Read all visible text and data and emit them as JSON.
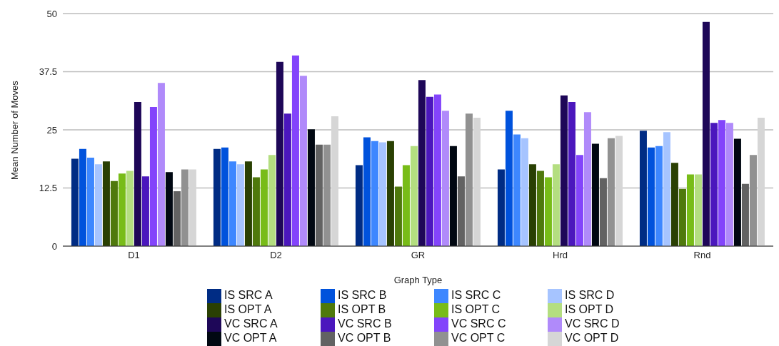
{
  "chart_data": {
    "type": "bar",
    "xlabel": "Graph Type",
    "ylabel": "Mean Number of Moves",
    "categories": [
      "D1",
      "D2",
      "GR",
      "Hrd",
      "Rnd"
    ],
    "ylim": [
      0,
      50
    ],
    "yticks": [
      0,
      12.5,
      {
        "value": 25,
        "label": "25"
      },
      37.5,
      50
    ],
    "grid": "y",
    "legend": "bottom",
    "series": [
      {
        "name": "IS SRC A",
        "color": "#002c84",
        "values": [
          18.8,
          20.9,
          17.4,
          16.5,
          24.8
        ]
      },
      {
        "name": "IS SRC B",
        "color": "#0052dc",
        "values": [
          20.9,
          21.2,
          23.4,
          29.1,
          21.2
        ]
      },
      {
        "name": "IS SRC C",
        "color": "#3d87ff",
        "values": [
          19.0,
          18.2,
          22.6,
          24.0,
          21.5
        ]
      },
      {
        "name": "IS SRC D",
        "color": "#a6c4ff",
        "values": [
          17.6,
          17.6,
          22.3,
          23.2,
          24.5
        ]
      },
      {
        "name": "IS OPT A",
        "color": "#2a4003",
        "values": [
          18.2,
          18.2,
          22.6,
          17.6,
          17.9
        ]
      },
      {
        "name": "IS OPT B",
        "color": "#4f790c",
        "values": [
          14.0,
          14.8,
          12.8,
          16.2,
          12.3
        ]
      },
      {
        "name": "IS OPT C",
        "color": "#78bc18",
        "values": [
          15.6,
          16.5,
          17.4,
          14.8,
          15.4
        ]
      },
      {
        "name": "IS OPT D",
        "color": "#b4de80",
        "values": [
          16.2,
          19.6,
          21.5,
          17.6,
          15.4
        ]
      },
      {
        "name": "VC SRC A",
        "color": "#1e0758",
        "values": [
          31.0,
          39.6,
          35.7,
          32.4,
          48.2
        ]
      },
      {
        "name": "VC SRC B",
        "color": "#4b17bd",
        "values": [
          15.0,
          28.5,
          32.1,
          31.0,
          26.5
        ]
      },
      {
        "name": "VC SRC C",
        "color": "#8344fb",
        "values": [
          29.9,
          41.0,
          32.6,
          19.6,
          27.1
        ]
      },
      {
        "name": "VC SRC D",
        "color": "#b08afa",
        "values": [
          35.1,
          36.6,
          29.1,
          28.8,
          26.5
        ]
      },
      {
        "name": "VC OPT A",
        "color": "#010812",
        "values": [
          15.9,
          25.1,
          21.5,
          22.0,
          23.1
        ]
      },
      {
        "name": "VC OPT B",
        "color": "#626262",
        "values": [
          11.8,
          21.8,
          15.0,
          14.6,
          13.4
        ]
      },
      {
        "name": "VC OPT C",
        "color": "#919191",
        "values": [
          16.5,
          21.8,
          28.5,
          23.2,
          19.6
        ]
      },
      {
        "name": "VC OPT D",
        "color": "#d6d6d6",
        "values": [
          16.5,
          27.9,
          27.6,
          23.7,
          27.6
        ]
      }
    ]
  }
}
